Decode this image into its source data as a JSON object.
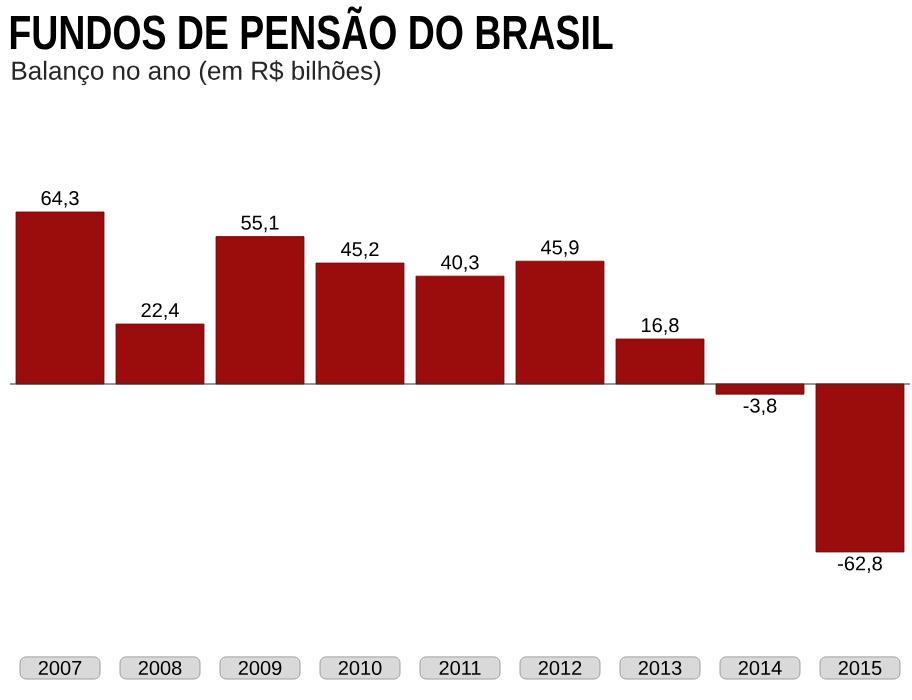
{
  "chart_data": {
    "type": "bar",
    "title": "FUNDOS DE PENSÃO DO BRASIL",
    "subtitle": "Balanço no ano (em R$ bilhões)",
    "categories": [
      "2007",
      "2008",
      "2009",
      "2010",
      "2011",
      "2012",
      "2013",
      "2014",
      "2015"
    ],
    "values": [
      64.3,
      22.4,
      55.1,
      45.2,
      40.3,
      45.9,
      16.8,
      -3.8,
      -62.8
    ],
    "value_labels": [
      "64,3",
      "22,4",
      "55,1",
      "45,2",
      "40,3",
      "45,9",
      "16,8",
      "-3,8",
      "-62,8"
    ],
    "color": "#9b0c0c"
  }
}
